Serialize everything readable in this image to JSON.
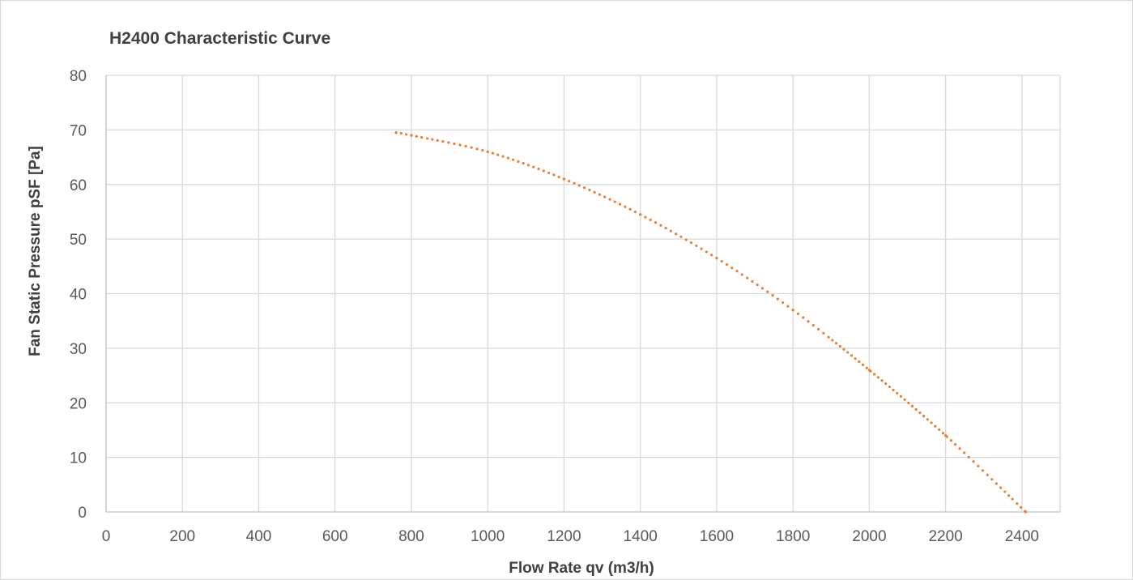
{
  "chart_data": {
    "type": "line",
    "title": "H2400 Characteristic Curve",
    "xlabel": "Flow Rate qv (m3/h)",
    "ylabel": "Fan Static Pressure pSF [Pa]",
    "xlim": [
      0,
      2500
    ],
    "ylim": [
      0,
      80
    ],
    "x_ticks": [
      "0",
      "200",
      "400",
      "600",
      "800",
      "1000",
      "1200",
      "1400",
      "1600",
      "1800",
      "2000",
      "2200",
      "2400"
    ],
    "y_ticks": [
      "0",
      "10",
      "20",
      "30",
      "40",
      "50",
      "60",
      "70",
      "80"
    ],
    "grid": true,
    "legend": "none",
    "series": [
      {
        "line_style": "dotted",
        "color": "#ed7d31",
        "x": [
          760,
          800,
          1000,
          1200,
          1400,
          1600,
          1800,
          2000,
          2200,
          2410
        ],
        "y": [
          69.5,
          69.0,
          66.0,
          61.0,
          54.5,
          46.5,
          37.0,
          26.0,
          14.0,
          0
        ]
      }
    ]
  }
}
